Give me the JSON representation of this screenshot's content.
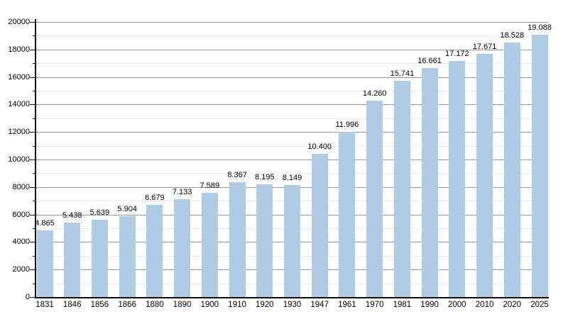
{
  "chart_data": {
    "type": "bar",
    "title": "",
    "xlabel": "",
    "ylabel": "",
    "categories": [
      "1831",
      "1846",
      "1856",
      "1866",
      "1880",
      "1890",
      "1900",
      "1910",
      "1920",
      "1930",
      "1947",
      "1961",
      "1970",
      "1981",
      "1990",
      "2000",
      "2010",
      "2020",
      "2025"
    ],
    "values": [
      4865,
      5438,
      5639,
      5904,
      6679,
      7133,
      7589,
      8367,
      8195,
      8149,
      10400,
      11996,
      14260,
      15741,
      16661,
      17172,
      17671,
      18528,
      19088
    ],
    "value_labels": [
      "4.865",
      "5.438",
      "5.639",
      "5.904",
      "6.679",
      "7.133",
      "7.589",
      "8.367",
      "8.195",
      "8.149",
      "10.400",
      "11.996",
      "14.260",
      "15.741",
      "16.661",
      "17.172",
      "17.671",
      "18.528",
      "19.088"
    ],
    "ylim": [
      0,
      20000
    ],
    "y_major_step": 2000,
    "y_minor_step": 1000,
    "y_tick_labels": [
      "0",
      "2000",
      "4000",
      "6000",
      "8000",
      "10000",
      "12000",
      "14000",
      "16000",
      "18000",
      "20000"
    ],
    "grid": true,
    "legend": false,
    "colors": {
      "bar_fill": "#b2cbe5",
      "major_gridline": "#969696",
      "minor_gridline": "#e8e8e8",
      "axis_line": "#111111",
      "label_text": "#000000",
      "background": "#ffffff"
    }
  }
}
